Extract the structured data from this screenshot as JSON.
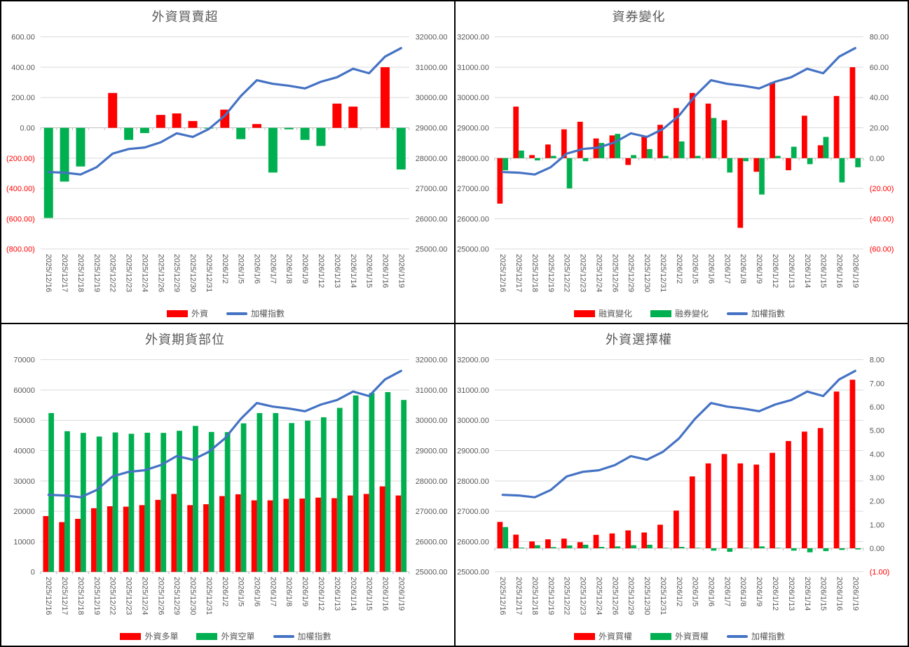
{
  "colors": {
    "bar_red": "#FF0000",
    "bar_green": "#00B050",
    "line_blue": "#4472C4",
    "axis_text": "#595959",
    "negative_axis_text": "#FF0000",
    "gridline": "#D9D9D9",
    "axis_line": "#BFBFBF",
    "title_text": "#595959"
  },
  "chart_data": [
    {
      "type": "bar+line",
      "title": "外資買賣超",
      "legend_position": "bottom",
      "grid": "left",
      "categories": [
        "2025/12/16",
        "2025/12/17",
        "2025/12/18",
        "2025/12/19",
        "2025/12/22",
        "2025/12/23",
        "2025/12/24",
        "2025/12/26",
        "2025/12/29",
        "2025/12/30",
        "2025/12/31",
        "2026/1/2",
        "2026/1/5",
        "2026/1/6",
        "2026/1/7",
        "2026/1/8",
        "2026/1/9",
        "2026/1/12",
        "2026/1/13",
        "2026/1/14",
        "2026/1/15",
        "2026/1/16",
        "2026/1/19"
      ],
      "left_axis": {
        "min": -800,
        "max": 600,
        "step": 200,
        "format": "2dp"
      },
      "right_axis": {
        "min": 25000,
        "max": 32000,
        "step": 1000,
        "format": "2dp"
      },
      "series": [
        {
          "name": "外資",
          "type": "bar",
          "axis": "left",
          "color": "#FF0000",
          "negative_color": "#00B050",
          "values": [
            -595,
            -355,
            -255,
            0,
            230,
            -80,
            -35,
            85,
            95,
            45,
            -5,
            120,
            -75,
            25,
            -295,
            -10,
            -80,
            -120,
            160,
            140,
            0,
            400,
            -275
          ]
        },
        {
          "name": "加權指數",
          "type": "line",
          "axis": "right",
          "color": "#4472C4",
          "values": [
            27540,
            27520,
            27460,
            27700,
            28150,
            28300,
            28350,
            28520,
            28820,
            28700,
            28960,
            29400,
            30050,
            30570,
            30450,
            30390,
            30300,
            30520,
            30670,
            30950,
            30800,
            31350,
            31630
          ]
        }
      ]
    },
    {
      "type": "bar+line",
      "title": "資券變化",
      "legend_position": "bottom",
      "grid": "left",
      "categories": [
        "2025/12/16",
        "2025/12/17",
        "2025/12/18",
        "2025/12/19",
        "2025/12/22",
        "2025/12/23",
        "2025/12/24",
        "2025/12/26",
        "2025/12/29",
        "2025/12/30",
        "2025/12/31",
        "2026/1/2",
        "2026/1/5",
        "2026/1/6",
        "2026/1/7",
        "2026/1/8",
        "2026/1/9",
        "2026/1/12",
        "2026/1/13",
        "2026/1/14",
        "2026/1/15",
        "2026/1/16",
        "2026/1/19"
      ],
      "left_axis": {
        "min": 25000,
        "max": 32000,
        "step": 1000,
        "format": "2dp"
      },
      "right_axis": {
        "min": -60,
        "max": 80,
        "step": 20,
        "format": "2dp"
      },
      "series": [
        {
          "name": "融資變化",
          "type": "bar",
          "axis": "right",
          "color": "#FF0000",
          "values": [
            -30,
            34,
            2,
            9,
            19,
            24,
            13,
            15,
            -4.5,
            14,
            22,
            33,
            43,
            36,
            25,
            -46,
            -9,
            50,
            -8,
            28,
            8.5,
            41,
            60
          ]
        },
        {
          "name": "融券變化",
          "type": "bar",
          "axis": "right",
          "color": "#00B050",
          "values": [
            -8,
            5,
            -1.5,
            1.5,
            -20,
            -2,
            10,
            16,
            2,
            6,
            1.5,
            11,
            1.5,
            26.5,
            -9.5,
            -2,
            -24,
            1.5,
            7.5,
            -4,
            14,
            -16,
            -6
          ]
        },
        {
          "name": "加權指數",
          "type": "line",
          "axis": "left",
          "color": "#4472C4",
          "values": [
            27540,
            27520,
            27460,
            27700,
            28150,
            28300,
            28350,
            28520,
            28820,
            28700,
            28960,
            29400,
            30050,
            30570,
            30450,
            30390,
            30300,
            30520,
            30670,
            30950,
            30800,
            31350,
            31630
          ]
        }
      ]
    },
    {
      "type": "bar+line",
      "title": "外資期貨部位",
      "legend_position": "bottom",
      "grid": "left",
      "categories": [
        "2025/12/16",
        "2025/12/17",
        "2025/12/18",
        "2025/12/19",
        "2025/12/22",
        "2025/12/23",
        "2025/12/24",
        "2025/12/26",
        "2025/12/29",
        "2025/12/30",
        "2025/12/31",
        "2026/1/2",
        "2026/1/5",
        "2026/1/6",
        "2026/1/7",
        "2026/1/8",
        "2026/1/9",
        "2026/1/12",
        "2026/1/13",
        "2026/1/14",
        "2026/1/15",
        "2026/1/16",
        "2026/1/19"
      ],
      "left_axis": {
        "min": 0,
        "max": 70000,
        "step": 10000,
        "format": "int"
      },
      "right_axis": {
        "min": 25000,
        "max": 32000,
        "step": 1000,
        "format": "2dp"
      },
      "series": [
        {
          "name": "外資多單",
          "type": "bar",
          "axis": "left",
          "color": "#FF0000",
          "values": [
            18400,
            16400,
            17500,
            21000,
            21650,
            21500,
            22000,
            23750,
            25700,
            22000,
            22300,
            25000,
            25600,
            23600,
            23600,
            24100,
            24200,
            24500,
            24300,
            25200,
            25700,
            28200,
            25200
          ]
        },
        {
          "name": "外資空單",
          "type": "bar",
          "axis": "left",
          "color": "#00B050",
          "values": [
            52400,
            46400,
            45850,
            44650,
            46000,
            45550,
            45900,
            45850,
            46550,
            48150,
            46150,
            46100,
            49000,
            52400,
            52400,
            49100,
            49900,
            51000,
            54100,
            58200,
            59000,
            59300,
            56700
          ]
        },
        {
          "name": "加權指數",
          "type": "line",
          "axis": "right",
          "color": "#4472C4",
          "values": [
            27540,
            27520,
            27460,
            27700,
            28150,
            28300,
            28350,
            28520,
            28820,
            28700,
            28960,
            29400,
            30050,
            30570,
            30450,
            30390,
            30300,
            30520,
            30670,
            30950,
            30800,
            31350,
            31630
          ]
        }
      ]
    },
    {
      "type": "bar+line",
      "title": "外資選擇權",
      "legend_position": "bottom",
      "grid": "left",
      "categories": [
        "2025/12/16",
        "2025/12/17",
        "2025/12/18",
        "2025/12/19",
        "2025/12/22",
        "2025/12/23",
        "2025/12/24",
        "2025/12/26",
        "2025/12/29",
        "2025/12/30",
        "2025/12/31",
        "2026/1/2",
        "2026/1/5",
        "2026/1/6",
        "2026/1/7",
        "2026/1/8",
        "2026/1/9",
        "2026/1/12",
        "2026/1/13",
        "2026/1/14",
        "2026/1/15",
        "2026/1/16",
        "2026/1/19"
      ],
      "left_axis": {
        "min": 25000,
        "max": 32000,
        "step": 1000,
        "format": "2dp"
      },
      "right_axis": {
        "min": -1,
        "max": 8,
        "step": 1,
        "format": "2dp"
      },
      "series": [
        {
          "name": "外資買權",
          "type": "bar",
          "axis": "right",
          "color": "#FF0000",
          "values": [
            1.12,
            0.58,
            0.29,
            0.38,
            0.41,
            0.26,
            0.57,
            0.63,
            0.76,
            0.67,
            1.0,
            1.6,
            3.05,
            3.6,
            4.0,
            3.6,
            3.55,
            4.05,
            4.55,
            4.95,
            5.1,
            6.65,
            7.15
          ]
        },
        {
          "name": "外資賣權",
          "type": "bar",
          "axis": "right",
          "color": "#00B050",
          "values": [
            0.9,
            0.03,
            0.13,
            0.05,
            0.12,
            0.15,
            0.06,
            0.08,
            0.13,
            0.15,
            0.02,
            0.06,
            0.02,
            -0.1,
            -0.15,
            0.02,
            0.08,
            0.02,
            -0.1,
            -0.17,
            -0.12,
            -0.07,
            -0.05
          ]
        },
        {
          "name": "加權指數",
          "type": "line",
          "axis": "left",
          "color": "#4472C4",
          "values": [
            27540,
            27520,
            27460,
            27700,
            28150,
            28300,
            28350,
            28520,
            28820,
            28700,
            28960,
            29400,
            30050,
            30570,
            30450,
            30390,
            30300,
            30520,
            30670,
            30950,
            30800,
            31350,
            31630
          ]
        }
      ]
    }
  ]
}
